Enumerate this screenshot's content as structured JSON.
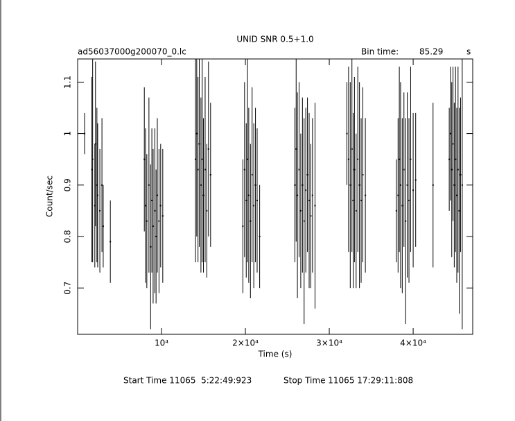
{
  "chart_data": {
    "type": "errorbar",
    "title": "UNID SNR 0.5+1.0",
    "subtitle": "ad56037000g200070_0.lc",
    "bin_label": "Bin time:",
    "bin_value": "85.29",
    "bin_unit": "s",
    "x_label": "Time (s)",
    "y_label": "Count/sec",
    "start_time": "Start Time 11065  5:22:49:923",
    "stop_time": "Stop Time 11065 17:29:11:808",
    "color": "#000000",
    "xlim": [
      0,
      47100
    ],
    "ylim": [
      0.61,
      1.145
    ],
    "xticks": [
      {
        "value": 10000,
        "label": "10⁴"
      },
      {
        "value": 20000,
        "label": "2×10⁴"
      },
      {
        "value": 30000,
        "label": "3×10⁴"
      },
      {
        "value": 40000,
        "label": "4×10⁴"
      }
    ],
    "yticks": [
      0.7,
      0.8,
      0.9,
      1,
      1.1
    ],
    "x": [
      830,
      1700,
      1790,
      2050,
      2130,
      2300,
      2390,
      2650,
      2900,
      3050,
      3900,
      7950,
      8100,
      8250,
      8500,
      8700,
      8850,
      9000,
      9200,
      9350,
      9500,
      9700,
      9900,
      10150,
      14050,
      14200,
      14350,
      14500,
      14700,
      14850,
      15000,
      15200,
      15400,
      15600,
      15850,
      19700,
      19900,
      20100,
      20250,
      20400,
      20600,
      20800,
      21000,
      21200,
      21400,
      21700,
      25900,
      26050,
      26200,
      26400,
      26600,
      26800,
      27000,
      27200,
      27400,
      27600,
      27800,
      28000,
      28300,
      32100,
      32300,
      32500,
      32700,
      32850,
      33000,
      33200,
      33400,
      33600,
      33800,
      34000,
      34300,
      38000,
      38200,
      38350,
      38500,
      38700,
      38900,
      39100,
      39300,
      39500,
      39700,
      40000,
      40300,
      42370,
      44300,
      44450,
      44600,
      44750,
      44900,
      45050,
      45200,
      45350,
      45500,
      45650,
      45850
    ],
    "values": [
      1.0,
      0.93,
      0.95,
      0.86,
      0.98,
      0.9,
      0.88,
      0.85,
      0.9,
      0.82,
      0.79,
      0.95,
      0.86,
      0.83,
      0.9,
      0.78,
      0.87,
      0.82,
      0.85,
      0.8,
      0.88,
      0.83,
      0.86,
      0.84,
      0.95,
      1.0,
      0.93,
      0.98,
      0.9,
      0.95,
      0.88,
      0.93,
      0.85,
      0.97,
      0.92,
      0.82,
      0.93,
      0.87,
      0.95,
      0.88,
      0.83,
      0.92,
      0.86,
      0.9,
      0.87,
      0.8,
      0.9,
      0.97,
      0.88,
      0.93,
      0.85,
      0.9,
      0.83,
      0.89,
      0.92,
      0.87,
      0.84,
      0.88,
      0.86,
      1.0,
      0.95,
      0.9,
      0.97,
      0.87,
      0.93,
      0.85,
      0.95,
      0.9,
      0.87,
      0.92,
      0.88,
      0.85,
      0.88,
      0.95,
      0.9,
      0.86,
      0.93,
      0.83,
      0.9,
      0.87,
      0.95,
      0.89,
      0.91,
      0.9,
      0.95,
      1.0,
      0.93,
      0.98,
      0.9,
      0.95,
      0.88,
      0.93,
      0.85,
      0.92,
      0.9
    ],
    "errors": [
      0.04,
      0.18,
      0.2,
      0.12,
      0.16,
      0.15,
      0.14,
      0.12,
      0.13,
      0.08,
      0.08,
      0.14,
      0.15,
      0.13,
      0.17,
      0.16,
      0.14,
      0.15,
      0.16,
      0.13,
      0.15,
      0.14,
      0.12,
      0.13,
      0.2,
      0.2,
      0.18,
      0.2,
      0.17,
      0.2,
      0.15,
      0.18,
      0.13,
      0.17,
      0.14,
      0.13,
      0.17,
      0.15,
      0.2,
      0.17,
      0.15,
      0.17,
      0.16,
      0.15,
      0.14,
      0.1,
      0.15,
      0.18,
      0.2,
      0.17,
      0.15,
      0.17,
      0.2,
      0.16,
      0.15,
      0.17,
      0.14,
      0.15,
      0.2,
      0.1,
      0.18,
      0.2,
      0.2,
      0.17,
      0.18,
      0.15,
      0.18,
      0.2,
      0.16,
      0.17,
      0.15,
      0.1,
      0.15,
      0.18,
      0.2,
      0.17,
      0.15,
      0.2,
      0.18,
      0.16,
      0.18,
      0.15,
      0.13,
      0.16,
      0.1,
      0.13,
      0.17,
      0.15,
      0.16,
      0.18,
      0.17,
      0.2,
      0.2,
      0.15,
      0.28
    ]
  }
}
